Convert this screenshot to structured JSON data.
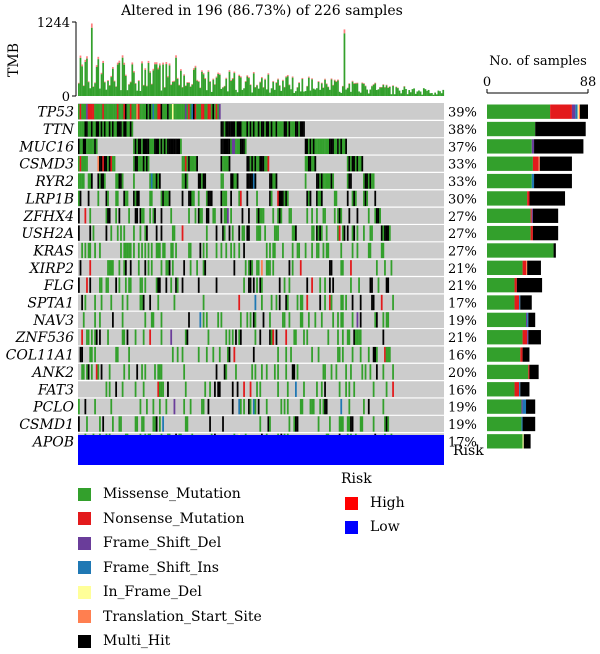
{
  "chart_data": {
    "type": "oncoplot",
    "title": "Altered in 196 (86.73%) of 226 samples",
    "tmb": {
      "ylabel": "TMB",
      "yticks": [
        0,
        1244
      ],
      "ymax": 1244
    },
    "side_bar": {
      "title": "No. of samples",
      "xticks": [
        0,
        88
      ],
      "xmax": 88
    },
    "n_columns": 226,
    "genes": [
      {
        "name": "TP53",
        "pct": "39%",
        "total": 88,
        "counts": {
          "Missense_Mutation": 55,
          "Nonsense_Mutation": 19,
          "Frame_Shift_Del": 3,
          "Frame_Shift_Ins": 2,
          "In_Frame_Del": 1,
          "Translation_Start_Site": 1,
          "Multi_Hit": 7
        }
      },
      {
        "name": "TTN",
        "pct": "38%",
        "total": 86,
        "counts": {
          "Missense_Mutation": 42,
          "Multi_Hit": 44
        }
      },
      {
        "name": "MUC16",
        "pct": "37%",
        "total": 84,
        "counts": {
          "Missense_Mutation": 39,
          "Frame_Shift_Del": 2,
          "Multi_Hit": 43
        }
      },
      {
        "name": "CSMD3",
        "pct": "33%",
        "total": 74,
        "counts": {
          "Missense_Mutation": 40,
          "Nonsense_Mutation": 5,
          "Translation_Start_Site": 1,
          "Multi_Hit": 28
        }
      },
      {
        "name": "RYR2",
        "pct": "33%",
        "total": 74,
        "counts": {
          "Missense_Mutation": 39,
          "Frame_Shift_Ins": 2,
          "Multi_Hit": 33
        }
      },
      {
        "name": "LRP1B",
        "pct": "30%",
        "total": 68,
        "counts": {
          "Missense_Mutation": 35,
          "Nonsense_Mutation": 2,
          "Multi_Hit": 31
        }
      },
      {
        "name": "ZFHX4",
        "pct": "27%",
        "total": 62,
        "counts": {
          "Missense_Mutation": 38,
          "Nonsense_Mutation": 1,
          "Frame_Shift_Del": 1,
          "Multi_Hit": 22
        }
      },
      {
        "name": "USH2A",
        "pct": "27%",
        "total": 62,
        "counts": {
          "Missense_Mutation": 38,
          "Nonsense_Mutation": 2,
          "Multi_Hit": 22
        }
      },
      {
        "name": "KRAS",
        "pct": "27%",
        "total": 60,
        "counts": {
          "Missense_Mutation": 58,
          "Multi_Hit": 2
        }
      },
      {
        "name": "XIRP2",
        "pct": "21%",
        "total": 47,
        "counts": {
          "Missense_Mutation": 31,
          "Nonsense_Mutation": 3,
          "Translation_Start_Site": 1,
          "Multi_Hit": 12
        }
      },
      {
        "name": "FLG",
        "pct": "21%",
        "total": 48,
        "counts": {
          "Missense_Mutation": 24,
          "Nonsense_Mutation": 2,
          "Multi_Hit": 22
        }
      },
      {
        "name": "SPTA1",
        "pct": "17%",
        "total": 39,
        "counts": {
          "Missense_Mutation": 24,
          "Nonsense_Mutation": 4,
          "Frame_Shift_Ins": 1,
          "Multi_Hit": 10
        }
      },
      {
        "name": "NAV3",
        "pct": "19%",
        "total": 42,
        "counts": {
          "Missense_Mutation": 34,
          "Frame_Shift_Del": 1,
          "Frame_Shift_Ins": 1,
          "Multi_Hit": 6
        }
      },
      {
        "name": "ZNF536",
        "pct": "21%",
        "total": 47,
        "counts": {
          "Missense_Mutation": 31,
          "Nonsense_Mutation": 4,
          "Frame_Shift_Del": 1,
          "Multi_Hit": 11
        }
      },
      {
        "name": "COL11A1",
        "pct": "16%",
        "total": 37,
        "counts": {
          "Missense_Mutation": 29,
          "Nonsense_Mutation": 2,
          "Multi_Hit": 6
        }
      },
      {
        "name": "ANK2",
        "pct": "20%",
        "total": 45,
        "counts": {
          "Missense_Mutation": 36,
          "Nonsense_Mutation": 1,
          "Multi_Hit": 8
        }
      },
      {
        "name": "FAT3",
        "pct": "16%",
        "total": 37,
        "counts": {
          "Missense_Mutation": 24,
          "Nonsense_Mutation": 4,
          "Frame_Shift_Ins": 1,
          "Multi_Hit": 8
        }
      },
      {
        "name": "PCLO",
        "pct": "19%",
        "total": 42,
        "counts": {
          "Missense_Mutation": 30,
          "Frame_Shift_Del": 1,
          "Frame_Shift_Ins": 3,
          "Multi_Hit": 8
        }
      },
      {
        "name": "CSMD1",
        "pct": "19%",
        "total": 42,
        "counts": {
          "Missense_Mutation": 30,
          "Frame_Shift_Ins": 1,
          "Multi_Hit": 11
        }
      },
      {
        "name": "APOB",
        "pct": "17%",
        "total": 38,
        "counts": {
          "Missense_Mutation": 31,
          "In_Frame_Del": 1,
          "Multi_Hit": 6
        }
      }
    ],
    "risk_track": {
      "label": "Risk",
      "value": "Low"
    },
    "mutation_types": [
      {
        "name": "Missense_Mutation",
        "color": "#33a02c"
      },
      {
        "name": "Nonsense_Mutation",
        "color": "#e31a1c"
      },
      {
        "name": "Frame_Shift_Del",
        "color": "#6a3d9a"
      },
      {
        "name": "Frame_Shift_Ins",
        "color": "#1f78b4"
      },
      {
        "name": "In_Frame_Del",
        "color": "#ffff99"
      },
      {
        "name": "Translation_Start_Site",
        "color": "#ff7f50"
      },
      {
        "name": "Multi_Hit",
        "color": "#000000"
      }
    ],
    "risk_legend": {
      "title": "Risk",
      "items": [
        {
          "name": "High",
          "color": "#ff0000"
        },
        {
          "name": "Low",
          "color": "#0000ff"
        }
      ]
    },
    "colors": {
      "background": "#cccccc",
      "grid": "#ffffff"
    }
  }
}
